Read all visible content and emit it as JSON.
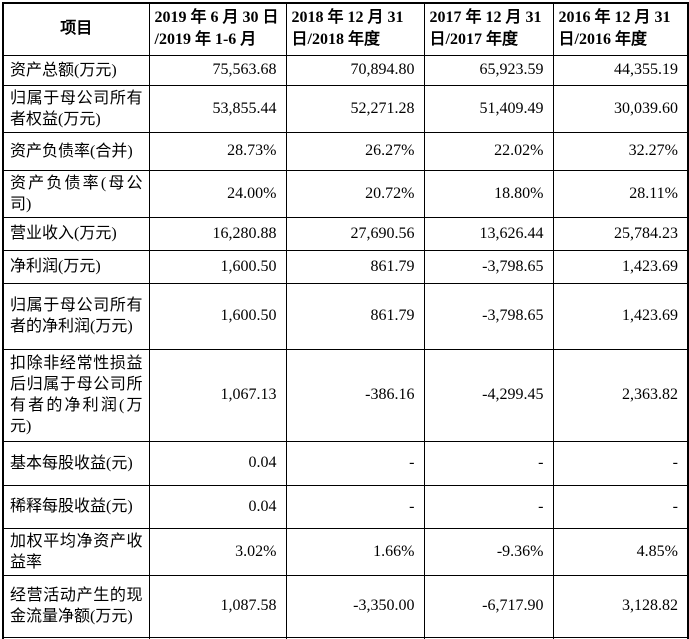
{
  "page": {
    "background_color": "#ffffff",
    "text_color": "#000000",
    "border_color": "#000000"
  },
  "table": {
    "header": {
      "item_label": "项目",
      "periods": [
        {
          "line1": "2019 年 6 月 30 日",
          "line2": "/2019 年 1-6 月"
        },
        {
          "line1": "2018 年 12 月 31",
          "line2": "日/2018 年度"
        },
        {
          "line1": "2017 年 12 月 31",
          "line2": "日/2017 年度"
        },
        {
          "line1": "2016 年 12 月 31",
          "line2": "日/2016 年度"
        }
      ]
    },
    "rows": [
      {
        "label": "资产总额(万元)",
        "values": [
          "75,563.68",
          "70,894.80",
          "65,923.59",
          "44,355.19"
        ]
      },
      {
        "label": "归属于母公司所有者权益(万元)",
        "values": [
          "53,855.44",
          "52,271.28",
          "51,409.49",
          "30,039.60"
        ]
      },
      {
        "label": "资产负债率(合并)",
        "values": [
          "28.73%",
          "26.27%",
          "22.02%",
          "32.27%"
        ]
      },
      {
        "label": "资产负债率(母公司)",
        "values": [
          "24.00%",
          "20.72%",
          "18.80%",
          "28.11%"
        ]
      },
      {
        "label": "营业收入(万元)",
        "values": [
          "16,280.88",
          "27,690.56",
          "13,626.44",
          "25,784.23"
        ]
      },
      {
        "label": "净利润(万元)",
        "values": [
          "1,600.50",
          "861.79",
          "-3,798.65",
          "1,423.69"
        ]
      },
      {
        "label": "归属于母公司所有者的净利润(万元)",
        "values": [
          "1,600.50",
          "861.79",
          "-3,798.65",
          "1,423.69"
        ]
      },
      {
        "label": "扣除非经常性损益后归属于母公司所有者的净利润(万元)",
        "values": [
          "1,067.13",
          "-386.16",
          "-4,299.45",
          "2,363.82"
        ]
      },
      {
        "label": "基本每股收益(元)",
        "values": [
          "0.04",
          "-",
          "-",
          "-"
        ]
      },
      {
        "label": "稀释每股收益(元)",
        "values": [
          "0.04",
          "-",
          "-",
          "-"
        ]
      },
      {
        "label": "加权平均净资产收益率",
        "values": [
          "3.02%",
          "1.66%",
          "-9.36%",
          "4.85%"
        ]
      },
      {
        "label": "经营活动产生的现金流量净额(万元)",
        "values": [
          "1,087.58",
          "-3,350.00",
          "-6,717.90",
          "3,128.82"
        ]
      }
    ]
  }
}
